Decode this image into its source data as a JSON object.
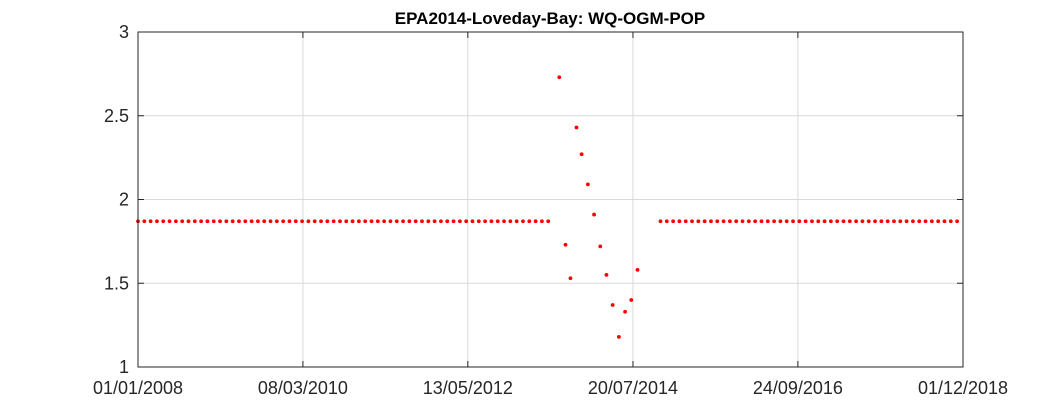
{
  "chart_data": {
    "type": "scatter",
    "title": "EPA2014-Loveday-Bay: WQ-OGM-POP",
    "xlabel": "",
    "ylabel": "",
    "x_type": "date",
    "xlim": [
      "2008-01-01",
      "2018-12-01"
    ],
    "ylim": [
      1,
      3
    ],
    "xticks": [
      "01/01/2008",
      "08/03/2010",
      "13/05/2012",
      "20/07/2014",
      "24/09/2016",
      "01/12/2018"
    ],
    "yticks": [
      "1",
      "1.5",
      "2",
      "2.5",
      "3"
    ],
    "grid": true,
    "marker_color": "#ff0000",
    "baseline": {
      "value": 1.87,
      "segments": [
        {
          "from": "2008-01-01",
          "to": "2013-06-29"
        },
        {
          "from": "2014-11-30",
          "to": "2018-12-01"
        }
      ],
      "interval_days": 30.5
    },
    "series": [
      {
        "points": [
          {
            "x": "2013-07-29",
            "y": 2.73
          },
          {
            "x": "2013-08-28",
            "y": 1.73
          },
          {
            "x": "2013-09-21",
            "y": 1.53
          },
          {
            "x": "2013-10-20",
            "y": 2.43
          },
          {
            "x": "2013-11-14",
            "y": 2.27
          },
          {
            "x": "2013-12-14",
            "y": 2.09
          },
          {
            "x": "2014-01-13",
            "y": 1.91
          },
          {
            "x": "2014-02-12",
            "y": 1.72
          },
          {
            "x": "2014-03-14",
            "y": 1.55
          },
          {
            "x": "2014-04-13",
            "y": 1.37
          },
          {
            "x": "2014-05-13",
            "y": 1.18
          },
          {
            "x": "2014-06-12",
            "y": 1.33
          },
          {
            "x": "2014-07-12",
            "y": 1.4
          },
          {
            "x": "2014-08-11",
            "y": 1.58
          }
        ]
      }
    ]
  }
}
